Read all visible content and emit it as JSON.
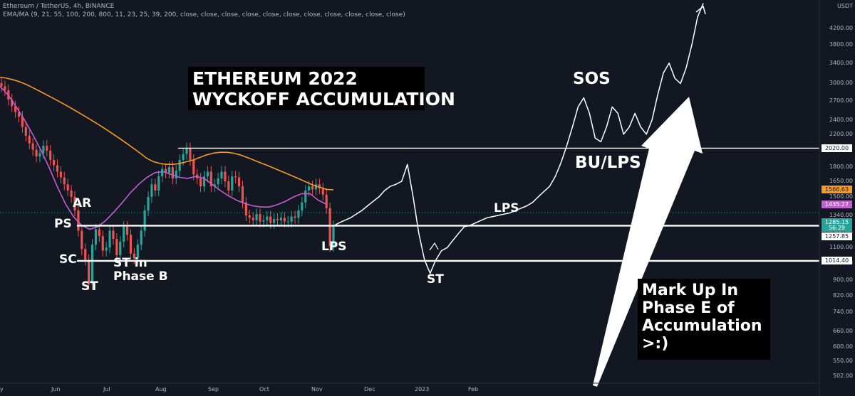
{
  "header": {
    "symbol_line": "Ethereum / TetherUS, 4h, BINANCE",
    "indicator_line": "EMA/MA (9, 21, 55, 100, 200, 800, 11, 23, 25, 39, 200, close, close, close, close, close, close, close, close, close, close, close)"
  },
  "chart_data": {
    "type": "line",
    "title_lines": [
      "ETHEREUM 2022",
      "WYCKOFF ACCUMULATION"
    ],
    "currency_label": "USDT",
    "y_scale": "log",
    "ylim": [
      480,
      5000
    ],
    "x_ticks": [
      "y",
      "Jun",
      "Jul",
      "Aug",
      "Sep",
      "Oct",
      "Nov",
      "Dec",
      "2023",
      "Feb"
    ],
    "y_ticks": [
      4200,
      3800,
      3400,
      3000,
      2700,
      2400,
      2200,
      1800,
      1650,
      1500,
      1340,
      1200,
      1100,
      1000,
      900,
      820,
      740,
      660,
      600,
      550,
      502
    ],
    "y_tick_labels": [
      "4200.00",
      "3800.00",
      "3400.00",
      "3000.00",
      "2700.00",
      "2400.00",
      "2200.00",
      "1800.00",
      "1650.00",
      "1500.00",
      "1340.00",
      "1200.00",
      "1100.00",
      "1000.00",
      "900.00",
      "820.00",
      "740.00",
      "660.00",
      "600.00",
      "550.00",
      "502.00"
    ],
    "price_tags": [
      {
        "label": "2020.00",
        "value": 2020,
        "bg": "#ffffff",
        "fg": "#131722"
      },
      {
        "label": "1566.63",
        "value": 1566.63,
        "bg": "#f59b25",
        "fg": "#131722"
      },
      {
        "label": "1435.27",
        "value": 1435.27,
        "bg": "#c45ed4",
        "fg": "#ffffff"
      },
      {
        "label": "1285.15",
        "value": 1285.15,
        "bg": "#26a69a",
        "fg": "#ffffff"
      },
      {
        "label": "56:29",
        "value": 1240,
        "bg": "#26a69a",
        "fg": "#ffffff"
      },
      {
        "label": "1257.85",
        "value": 1180,
        "bg": "#ffffff",
        "fg": "#131722"
      },
      {
        "label": "1014.40",
        "value": 1014.4,
        "bg": "#ffffff",
        "fg": "#131722"
      }
    ],
    "levels": [
      2020,
      1257.85,
      1014.4
    ],
    "candles_close": [
      2950,
      2880,
      2720,
      2610,
      2520,
      2450,
      2300,
      2180,
      2080,
      2000,
      1920,
      1960,
      2050,
      1990,
      1880,
      1820,
      1750,
      1690,
      1620,
      1560,
      1500,
      1380,
      1220,
      1090,
      1020,
      880,
      1120,
      1230,
      1180,
      1080,
      1100,
      1220,
      1160,
      1050,
      1140,
      1250,
      1190,
      1060,
      1030,
      1120,
      1220,
      1380,
      1500,
      1620,
      1560,
      1700,
      1780,
      1740,
      1800,
      1680,
      1760,
      1880,
      1950,
      2020,
      1880,
      1720,
      1680,
      1600,
      1700,
      1750,
      1600,
      1620,
      1680,
      1750,
      1650,
      1560,
      1700,
      1690,
      1600,
      1450,
      1340,
      1320,
      1300,
      1350,
      1290,
      1300,
      1330,
      1280,
      1310,
      1300,
      1320,
      1290,
      1290,
      1330,
      1320,
      1380,
      1450,
      1560,
      1600,
      1570,
      1620,
      1580,
      1520,
      1400,
      1110,
      1255
    ],
    "ema_orange": [
      3120,
      3100,
      3070,
      3030,
      2980,
      2920,
      2860,
      2800,
      2740,
      2680,
      2620,
      2560,
      2500,
      2440,
      2380,
      2320,
      2260,
      2200,
      2140,
      2080,
      2020,
      1960,
      1900,
      1860,
      1840,
      1830,
      1830,
      1840,
      1860,
      1880,
      1910,
      1940,
      1960,
      1970,
      1970,
      1960,
      1940,
      1910,
      1880,
      1850,
      1820,
      1790,
      1760,
      1730,
      1700,
      1670,
      1640,
      1610,
      1590,
      1570,
      1566
    ],
    "ema_purple": [
      2950,
      2800,
      2600,
      2400,
      2200,
      2000,
      1800,
      1600,
      1440,
      1330,
      1260,
      1230,
      1250,
      1300,
      1370,
      1450,
      1540,
      1620,
      1690,
      1740,
      1750,
      1720,
      1690,
      1680,
      1700,
      1680,
      1620,
      1560,
      1510,
      1470,
      1440,
      1420,
      1410,
      1410,
      1430,
      1460,
      1500,
      1530,
      1530,
      1470,
      1435
    ],
    "projection": [
      1255,
      1280,
      1300,
      1320,
      1350,
      1380,
      1420,
      1460,
      1500,
      1560,
      1600,
      1620,
      1650,
      1830,
      1500,
      1200,
      1020,
      940,
      1020,
      1080,
      1100,
      1150,
      1200,
      1250,
      1260,
      1280,
      1300,
      1320,
      1330,
      1340,
      1350,
      1360,
      1380,
      1400,
      1420,
      1450,
      1500,
      1550,
      1600,
      1700,
      1850,
      2050,
      2300,
      2600,
      2750,
      2500,
      2150,
      2100,
      2300,
      2600,
      2500,
      2200,
      2300,
      2500,
      2300,
      2200,
      2400,
      2800,
      3200,
      3400,
      3100,
      3000,
      3300,
      3800,
      4500,
      4900
    ],
    "annotations": [
      "AR",
      "PS",
      "SC",
      "ST",
      "ST in",
      "Phase B",
      "LPS",
      "ST",
      "LPS",
      "SOS",
      "BU/LPS"
    ],
    "markup_note": [
      "Mark Up In",
      "Phase E of",
      "Accumulation",
      ">:)"
    ],
    "colors": {
      "background": "#131722",
      "bull": "#26a69a",
      "bear": "#ef5350",
      "ema_orange": "#f59b25",
      "ema_purple": "#c45ed4",
      "levels": "#ffffff",
      "projection": "#ffffff",
      "arrow": "#ffffff"
    }
  }
}
